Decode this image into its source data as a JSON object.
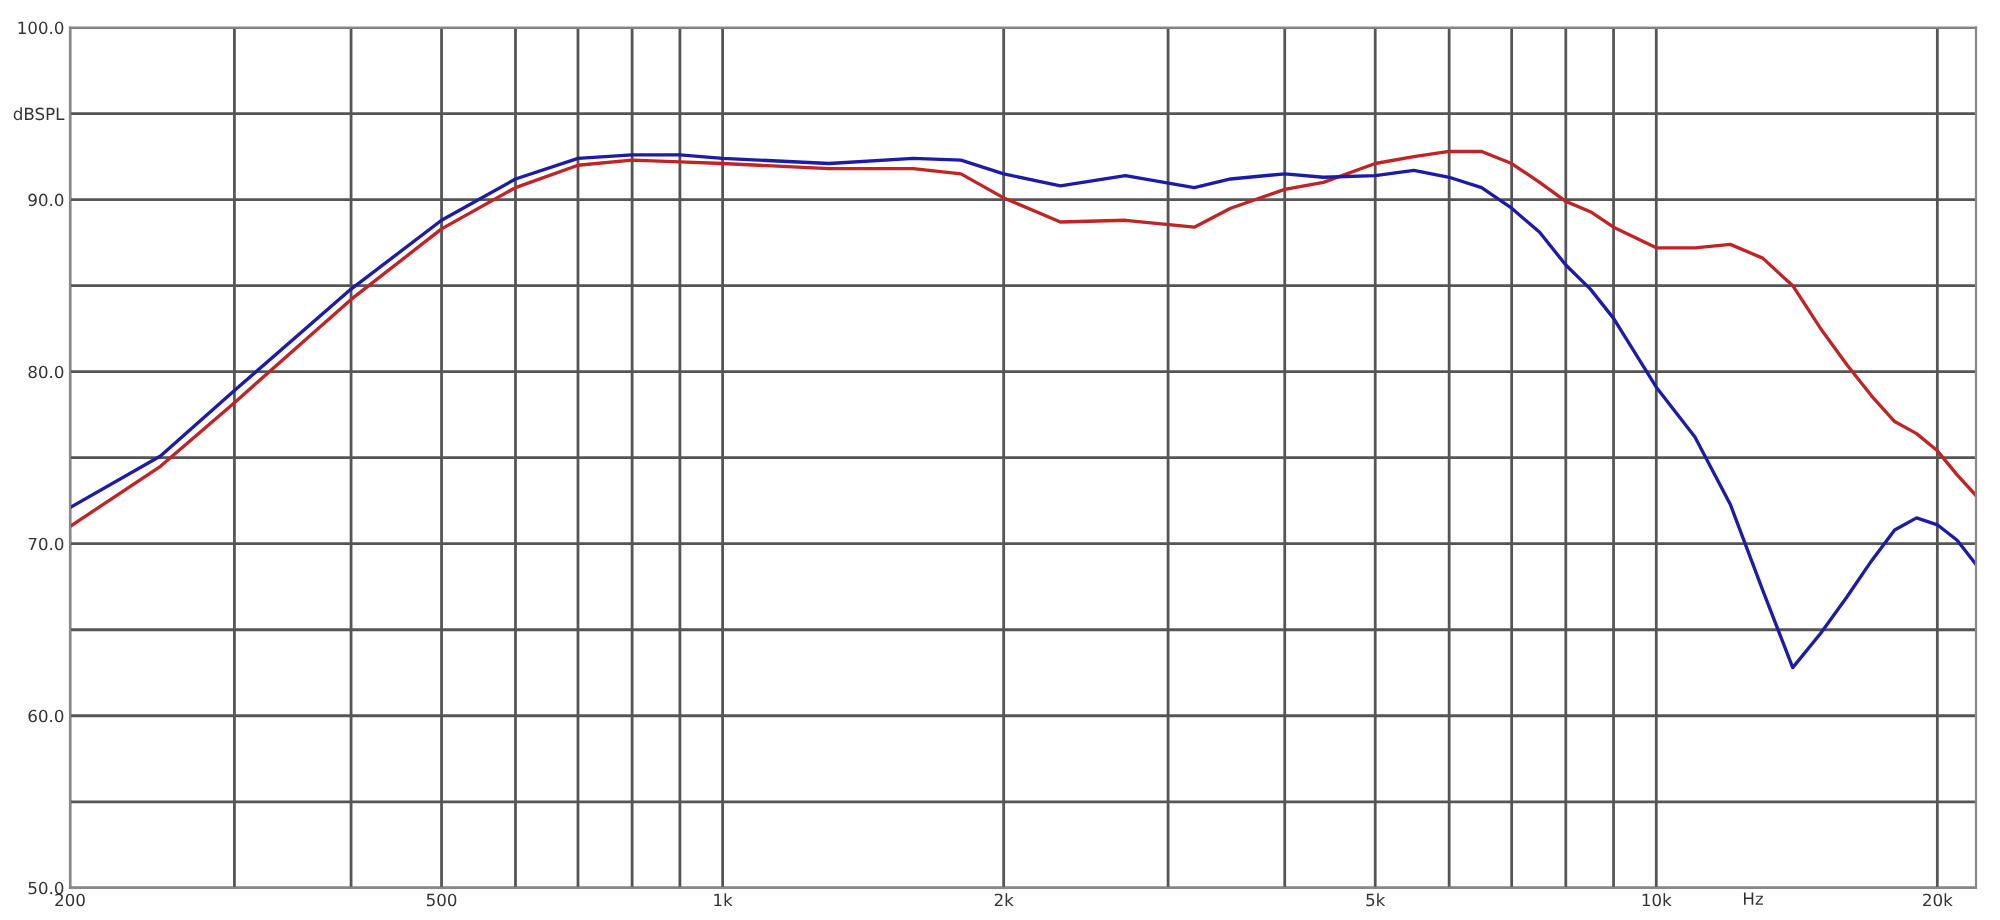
{
  "chart_data": {
    "type": "line",
    "xlabel": "Hz",
    "log": "x",
    "grid": true,
    "marker": "none",
    "line_style": "solid",
    "xlim": [
      200,
      22000
    ],
    "xticks": [
      200,
      {
        "value": 300,
        "label": null
      },
      {
        "value": 400,
        "label": null
      },
      500,
      {
        "value": 600,
        "label": null
      },
      {
        "value": 700,
        "label": null
      },
      {
        "value": 800,
        "label": null
      },
      {
        "value": 900,
        "label": null
      },
      {
        "value": 1000,
        "label": "1k"
      },
      {
        "value": 2000,
        "label": "2k"
      },
      {
        "value": 3000,
        "label": null
      },
      {
        "value": 4000,
        "label": null
      },
      {
        "value": 5000,
        "label": "5k"
      },
      {
        "value": 6000,
        "label": null
      },
      {
        "value": 7000,
        "label": null
      },
      {
        "value": 8000,
        "label": null
      },
      {
        "value": 9000,
        "label": null
      },
      {
        "value": 10000,
        "label": "10k"
      },
      {
        "value": 20000,
        "label": "20k"
      }
    ],
    "ylim": [
      50,
      100
    ],
    "yticks": [
      {
        "value": 50,
        "label": "50.0"
      },
      {
        "value": 55,
        "label": null
      },
      {
        "value": 60,
        "label": "60.0"
      },
      {
        "value": 65,
        "label": null
      },
      {
        "value": 70,
        "label": "70.0"
      },
      {
        "value": 75,
        "label": null
      },
      {
        "value": 80,
        "label": "80.0"
      },
      {
        "value": 85,
        "label": null
      },
      {
        "value": 90,
        "label": "90.0"
      },
      {
        "value": 95,
        "label": "dBSPL"
      },
      {
        "value": 100,
        "label": "100.0"
      }
    ],
    "x": [
      200,
      250,
      300,
      400,
      500,
      600,
      700,
      800,
      900,
      1000,
      1300,
      1600,
      1800,
      2000,
      2300,
      2700,
      3200,
      3500,
      4000,
      4400,
      5000,
      5500,
      6000,
      6500,
      7000,
      7500,
      8000,
      8500,
      9000,
      10000,
      11000,
      12000,
      13000,
      14000,
      15000,
      16000,
      17000,
      18000,
      19000,
      20000,
      21000,
      22000
    ],
    "series": [
      {
        "color": "#c02424",
        "values": [
          71.0,
          74.5,
          78.2,
          84.2,
          88.3,
          90.7,
          92.0,
          92.3,
          92.2,
          92.1,
          91.8,
          91.8,
          91.5,
          90.1,
          88.7,
          88.8,
          88.4,
          89.5,
          90.6,
          91.0,
          92.1,
          92.5,
          92.8,
          92.8,
          92.1,
          91.0,
          89.9,
          89.3,
          88.4,
          87.2,
          87.2,
          87.4,
          86.6,
          85.0,
          82.5,
          80.4,
          78.6,
          77.1,
          76.4,
          75.4,
          74.0,
          72.8
        ]
      },
      {
        "color": "#1c1ca8",
        "values": [
          72.1,
          75.1,
          78.9,
          84.8,
          88.8,
          91.2,
          92.4,
          92.6,
          92.6,
          92.4,
          92.1,
          92.4,
          92.3,
          91.5,
          90.8,
          91.4,
          90.7,
          91.2,
          91.5,
          91.3,
          91.4,
          91.7,
          91.3,
          90.7,
          89.5,
          88.1,
          86.2,
          84.8,
          83.1,
          79.1,
          76.2,
          72.3,
          67.3,
          62.8,
          64.8,
          66.9,
          69.0,
          70.8,
          71.5,
          71.1,
          70.2,
          68.8
        ]
      }
    ]
  }
}
